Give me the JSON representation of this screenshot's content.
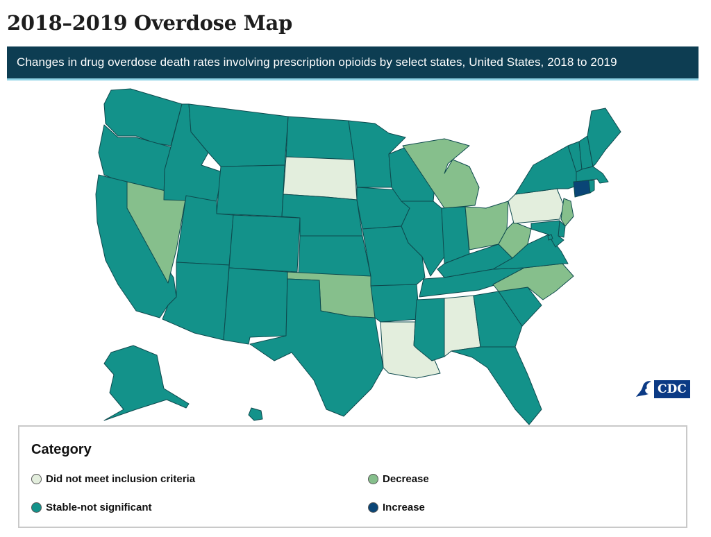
{
  "title": "2018–2019 Overdose Map",
  "subtitle": "Changes in drug overdose death rates involving prescription opioids by select states, United States, 2018 to 2019",
  "colors": {
    "not_met": "#e3eedd",
    "stable": "#13928a",
    "decrease": "#86bf8c",
    "increase": "#0a4576",
    "border": "#0e4a4e",
    "header_bg": "#0d3d52"
  },
  "categories": {
    "not_met": "Did not meet inclusion criteria",
    "stable": "Stable-not significant",
    "decrease": "Decrease",
    "increase": "Increase"
  },
  "legend": {
    "title": "Category"
  },
  "logo": {
    "text": "CDC"
  },
  "states": {
    "WA": "stable",
    "OR": "stable",
    "CA": "stable",
    "NV": "decrease",
    "ID": "stable",
    "MT": "stable",
    "WY": "stable",
    "UT": "stable",
    "AZ": "stable",
    "CO": "stable",
    "NM": "stable",
    "ND": "stable",
    "SD": "not_met",
    "NE": "stable",
    "KS": "stable",
    "OK": "decrease",
    "TX": "stable",
    "MN": "stable",
    "IA": "stable",
    "MO": "stable",
    "AR": "stable",
    "LA": "not_met",
    "WI": "stable",
    "IL": "stable",
    "MI": "decrease",
    "IN": "stable",
    "OH": "decrease",
    "KY": "stable",
    "TN": "stable",
    "MS": "stable",
    "AL": "not_met",
    "GA": "stable",
    "FL": "stable",
    "SC": "stable",
    "NC": "decrease",
    "VA": "stable",
    "WV": "decrease",
    "PA": "not_met",
    "NY": "stable",
    "VT": "stable",
    "NH": "stable",
    "ME": "stable",
    "MA": "stable",
    "RI": "stable",
    "CT": "increase",
    "NJ": "decrease",
    "DE": "stable",
    "MD": "stable",
    "DC": "stable",
    "AK": "stable",
    "HI": "stable"
  }
}
